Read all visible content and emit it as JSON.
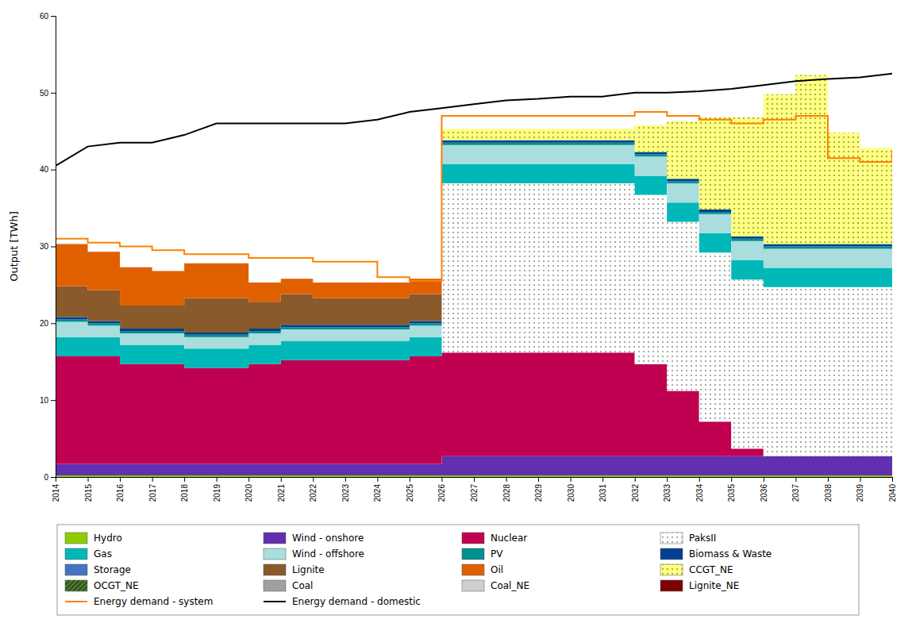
{
  "chart_data": {
    "type": "area",
    "stacked": true,
    "grid": false,
    "legend": "bottom",
    "ylabel": "Output [TWh]",
    "x": [
      2014,
      2015,
      2016,
      2017,
      2018,
      2019,
      2020,
      2021,
      2022,
      2023,
      2024,
      2025,
      2026,
      2027,
      2028,
      2029,
      2030,
      2031,
      2032,
      2033,
      2034,
      2035,
      2036,
      2037,
      2038,
      2039,
      2040
    ],
    "xlim": [
      2014,
      2040
    ],
    "xticks": [
      2014,
      2015,
      2016,
      2017,
      2018,
      2019,
      2020,
      2021,
      2022,
      2023,
      2024,
      2025,
      2026,
      2027,
      2028,
      2029,
      2030,
      2031,
      2032,
      2033,
      2034,
      2035,
      2036,
      2037,
      2038,
      2039,
      2040
    ],
    "ylim": [
      0,
      60
    ],
    "yticks": [
      0,
      10,
      20,
      30,
      40,
      50,
      60
    ],
    "series": [
      {
        "name": "Hydro",
        "type": "area",
        "line_style": "step",
        "color": "#90cc00",
        "values": [
          0.2,
          0.2,
          0.2,
          0.2,
          0.2,
          0.2,
          0.2,
          0.2,
          0.2,
          0.2,
          0.2,
          0.2,
          0.2,
          0.2,
          0.2,
          0.2,
          0.2,
          0.2,
          0.2,
          0.2,
          0.2,
          0.2,
          0.2,
          0.2,
          0.2,
          0.2,
          0.2
        ]
      },
      {
        "name": "Wind - onshore",
        "type": "area",
        "line_style": "step",
        "color": "#6030b0",
        "values": [
          1.5,
          1.5,
          1.5,
          1.5,
          1.5,
          1.5,
          1.5,
          1.5,
          1.5,
          1.5,
          1.5,
          1.5,
          2.5,
          2.5,
          2.5,
          2.5,
          2.5,
          2.5,
          2.5,
          2.5,
          2.5,
          2.5,
          2.5,
          2.5,
          2.5,
          2.5,
          2.5
        ]
      },
      {
        "name": "Nuclear",
        "type": "area",
        "line_style": "step",
        "color": "#c00050",
        "values": [
          14.0,
          14.0,
          13.0,
          13.0,
          12.5,
          12.5,
          13.0,
          13.5,
          13.5,
          13.5,
          13.5,
          14.0,
          13.5,
          13.5,
          13.5,
          13.5,
          13.5,
          13.5,
          12.0,
          8.5,
          4.5,
          1.0,
          0.0,
          0.0,
          0.0,
          0.0,
          0.0
        ]
      },
      {
        "name": "PaksII",
        "type": "area",
        "line_style": "step",
        "marker": "dots",
        "color": "#ffffff",
        "values": [
          0.0,
          0.0,
          0.0,
          0.0,
          0.0,
          0.0,
          0.0,
          0.0,
          0.0,
          0.0,
          0.0,
          0.0,
          22.0,
          22.0,
          22.0,
          22.0,
          22.0,
          22.0,
          22.0,
          22.0,
          22.0,
          22.0,
          22.0,
          22.0,
          22.0,
          22.0,
          22.0
        ]
      },
      {
        "name": "Gas",
        "type": "area",
        "line_style": "step",
        "color": "#00b8b8",
        "values": [
          2.5,
          2.5,
          2.5,
          2.5,
          2.5,
          2.5,
          2.5,
          2.5,
          2.5,
          2.5,
          2.5,
          2.5,
          2.5,
          2.5,
          2.5,
          2.5,
          2.5,
          2.5,
          2.5,
          2.5,
          2.5,
          2.5,
          2.5,
          2.5,
          2.5,
          2.5,
          2.5
        ]
      },
      {
        "name": "Wind - offshore",
        "type": "area",
        "line_style": "step",
        "color": "#aadddd",
        "values": [
          2.0,
          1.5,
          1.5,
          1.5,
          1.5,
          1.5,
          1.5,
          1.5,
          1.5,
          1.5,
          1.5,
          1.5,
          2.5,
          2.5,
          2.5,
          2.5,
          2.5,
          2.5,
          2.5,
          2.5,
          2.5,
          2.5,
          2.5,
          2.5,
          2.5,
          2.5,
          2.5
        ]
      },
      {
        "name": "PV",
        "type": "area",
        "line_style": "step",
        "color": "#009090",
        "values": [
          0.3,
          0.3,
          0.3,
          0.3,
          0.3,
          0.3,
          0.3,
          0.3,
          0.3,
          0.3,
          0.3,
          0.3,
          0.3,
          0.3,
          0.3,
          0.3,
          0.3,
          0.3,
          0.3,
          0.3,
          0.3,
          0.3,
          0.3,
          0.3,
          0.3,
          0.3,
          0.3
        ]
      },
      {
        "name": "Biomass & Waste",
        "type": "area",
        "line_style": "step",
        "color": "#004090",
        "values": [
          0.3,
          0.3,
          0.3,
          0.3,
          0.3,
          0.3,
          0.3,
          0.3,
          0.3,
          0.3,
          0.3,
          0.3,
          0.3,
          0.3,
          0.3,
          0.3,
          0.3,
          0.3,
          0.3,
          0.3,
          0.3,
          0.3,
          0.3,
          0.3,
          0.3,
          0.3,
          0.3
        ]
      },
      {
        "name": "Storage",
        "type": "area",
        "line_style": "step",
        "color": "#4472c4",
        "values": [
          0.0,
          0.0,
          0.0,
          0.0,
          0.0,
          0.0,
          0.0,
          0.0,
          0.0,
          0.0,
          0.0,
          0.0,
          0.0,
          0.0,
          0.0,
          0.0,
          0.0,
          0.0,
          0.0,
          0.0,
          0.0,
          0.0,
          0.0,
          0.0,
          0.0,
          0.0,
          0.0
        ]
      },
      {
        "name": "Lignite",
        "type": "area",
        "line_style": "step",
        "color": "#8b5a2b",
        "values": [
          4.0,
          4.0,
          3.0,
          3.0,
          4.5,
          4.5,
          3.5,
          4.0,
          3.5,
          3.5,
          3.5,
          3.5,
          0.0,
          0.0,
          0.0,
          0.0,
          0.0,
          0.0,
          0.0,
          0.0,
          0.0,
          0.0,
          0.0,
          0.0,
          0.0,
          0.0,
          0.0
        ]
      },
      {
        "name": "Oil",
        "type": "area",
        "line_style": "step",
        "color": "#e06000",
        "values": [
          5.5,
          5.0,
          5.0,
          4.5,
          4.5,
          4.5,
          2.5,
          2.0,
          2.0,
          2.0,
          2.0,
          2.0,
          0.0,
          0.0,
          0.0,
          0.0,
          0.0,
          0.0,
          0.0,
          0.0,
          0.0,
          0.0,
          0.0,
          0.0,
          0.0,
          0.0,
          0.0
        ]
      },
      {
        "name": "CCGT_NE",
        "type": "area",
        "line_style": "step",
        "marker": "dots",
        "color": "#ffff80",
        "values": [
          0.0,
          0.0,
          0.0,
          0.0,
          0.0,
          0.0,
          0.0,
          0.0,
          0.0,
          0.0,
          0.0,
          0.0,
          1.5,
          1.5,
          1.5,
          1.5,
          1.5,
          1.5,
          3.5,
          7.5,
          12.0,
          15.5,
          19.5,
          22.0,
          14.5,
          12.5,
          11.5
        ]
      },
      {
        "name": "OCGT_NE",
        "type": "area",
        "line_style": "step",
        "marker": "hatch",
        "color": "#375623",
        "values": [
          0.0,
          0.0,
          0.0,
          0.0,
          0.0,
          0.0,
          0.0,
          0.0,
          0.0,
          0.0,
          0.0,
          0.0,
          0.0,
          0.0,
          0.0,
          0.0,
          0.0,
          0.0,
          0.0,
          0.0,
          0.0,
          0.0,
          0.0,
          0.0,
          0.0,
          0.0,
          0.0
        ]
      },
      {
        "name": "Coal",
        "type": "area",
        "line_style": "step",
        "color": "#a0a0a0",
        "values": [
          0.0,
          0.0,
          0.0,
          0.0,
          0.0,
          0.0,
          0.0,
          0.0,
          0.0,
          0.0,
          0.0,
          0.0,
          0.0,
          0.0,
          0.0,
          0.0,
          0.0,
          0.0,
          0.0,
          0.0,
          0.0,
          0.0,
          0.0,
          0.0,
          0.0,
          0.0,
          0.0
        ]
      },
      {
        "name": "Coal_NE",
        "type": "area",
        "line_style": "step",
        "color": "#d0d0d0",
        "values": [
          0.0,
          0.0,
          0.0,
          0.0,
          0.0,
          0.0,
          0.0,
          0.0,
          0.0,
          0.0,
          0.0,
          0.0,
          0.0,
          0.0,
          0.0,
          0.0,
          0.0,
          0.0,
          0.0,
          0.0,
          0.0,
          0.0,
          0.0,
          0.0,
          0.0,
          0.0,
          0.0
        ]
      },
      {
        "name": "Lignite_NE",
        "type": "area",
        "line_style": "step",
        "color": "#7f0000",
        "values": [
          0.0,
          0.0,
          0.0,
          0.0,
          0.0,
          0.0,
          0.0,
          0.0,
          0.0,
          0.0,
          0.0,
          0.0,
          0.0,
          0.0,
          0.0,
          0.0,
          0.0,
          0.0,
          0.0,
          0.0,
          0.0,
          0.0,
          0.0,
          0.0,
          0.0,
          0.0,
          0.0
        ]
      },
      {
        "name": "Energy demand - system",
        "type": "line",
        "line_style": "step",
        "color": "#ff8000",
        "values": [
          31.0,
          30.5,
          30.0,
          29.5,
          29.0,
          29.0,
          28.5,
          28.5,
          28.0,
          28.0,
          26.0,
          25.5,
          47.0,
          47.0,
          47.0,
          47.0,
          47.0,
          47.0,
          47.5,
          47.0,
          46.5,
          46.0,
          46.5,
          47.0,
          41.5,
          41.0,
          42.5
        ]
      },
      {
        "name": "Energy demand - domestic",
        "type": "line",
        "line_style": "solid",
        "color": "#000000",
        "values": [
          40.5,
          43.0,
          43.5,
          43.5,
          44.5,
          46.0,
          46.0,
          46.0,
          46.0,
          46.0,
          46.5,
          47.5,
          48.0,
          48.5,
          49.0,
          49.2,
          49.5,
          49.5,
          50.0,
          50.0,
          50.2,
          50.5,
          51.0,
          51.5,
          51.8,
          52.0,
          52.5
        ]
      }
    ]
  }
}
